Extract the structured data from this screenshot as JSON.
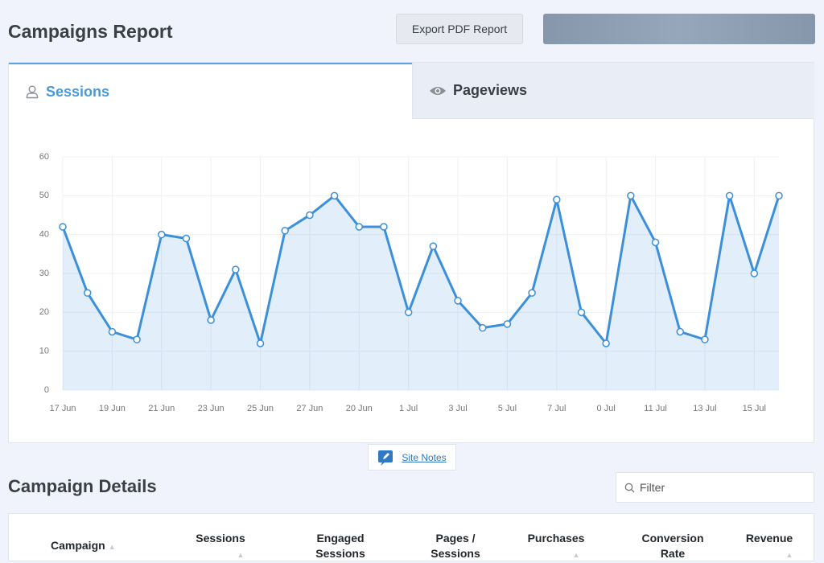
{
  "header": {
    "title": "Campaigns Report",
    "export_button": "Export PDF Report"
  },
  "tabs": [
    "Sessions",
    "Pageviews"
  ],
  "chart_data": {
    "type": "line",
    "categories": [
      "17 Jun",
      null,
      "19 Jun",
      null,
      "21 Jun",
      null,
      "23 Jun",
      null,
      "25 Jun",
      null,
      "27 Jun",
      null,
      "20 Jun",
      null,
      "1 Jul",
      null,
      "3 Jul",
      null,
      "5 Jul",
      null,
      "7 Jul",
      null,
      "0 Jul",
      null,
      "11 Jul",
      null,
      "13 Jul",
      null,
      "15 Jul",
      null
    ],
    "values": [
      42,
      25,
      15,
      13,
      40,
      39,
      18,
      31,
      12,
      41,
      45,
      50,
      42,
      42,
      20,
      37,
      23,
      16,
      17,
      25,
      49,
      20,
      12,
      50,
      38,
      15,
      13,
      50,
      30,
      50
    ],
    "color": "#3b8fdb",
    "ylim": [
      0,
      60
    ],
    "yticks": [
      0,
      10,
      20,
      30,
      40,
      50,
      60
    ],
    "grid": true
  },
  "site_notes": "Site Notes",
  "details": {
    "title": "Campaign Details",
    "filter_placeholder": "Filter",
    "columns": [
      "Campaign",
      "Sessions",
      "Engaged Sessions",
      "Pages / Sessions",
      "Purchases",
      "Conversion Rate",
      "Revenue"
    ]
  }
}
